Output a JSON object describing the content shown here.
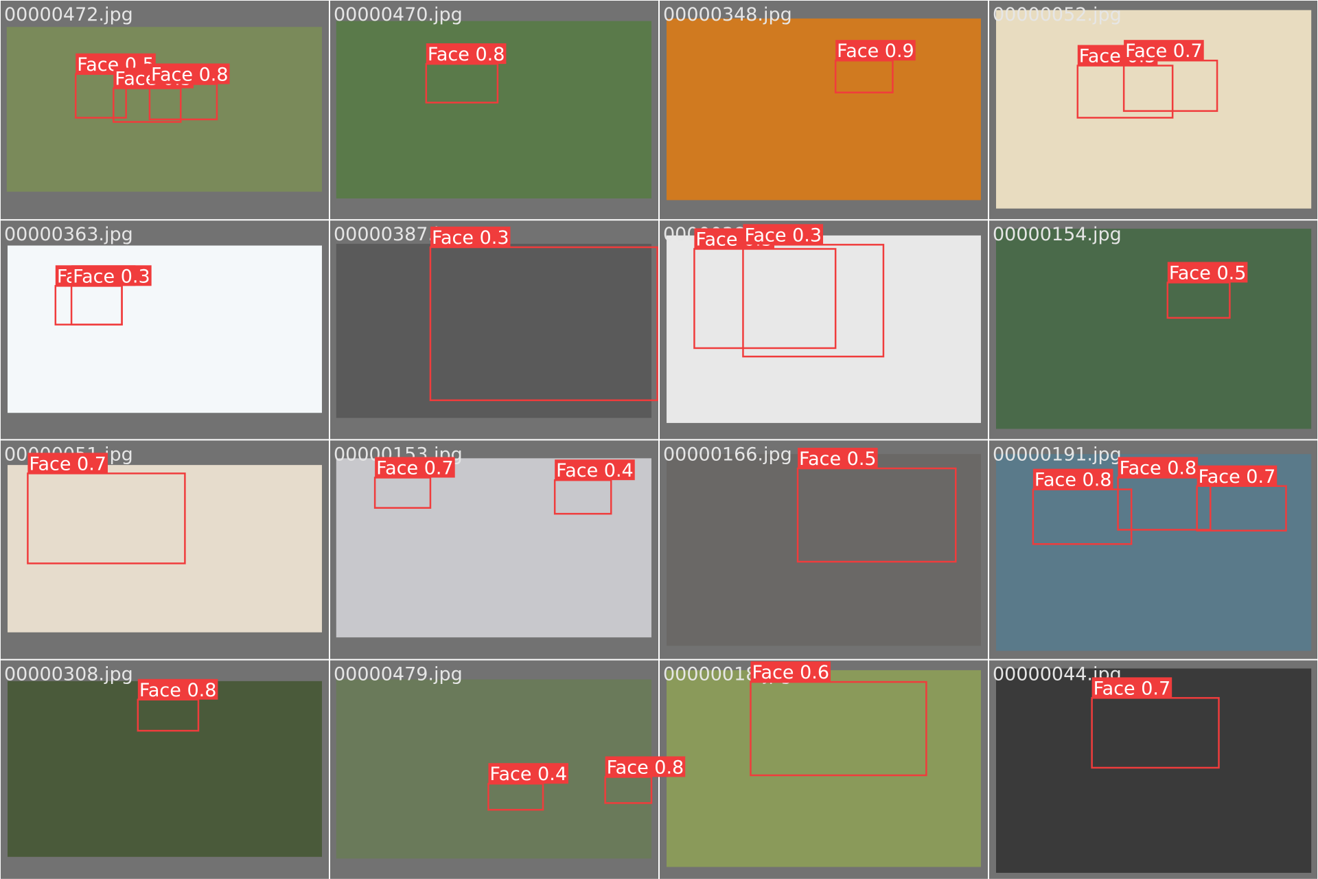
{
  "tiles": [
    {
      "filename": "00000472.jpg",
      "detections": [
        {
          "label": "Face 0.5"
        },
        {
          "label": "Face 0.5"
        },
        {
          "label": "Face 0.8"
        }
      ]
    },
    {
      "filename": "00000470.jpg",
      "detections": [
        {
          "label": "Face 0.8"
        }
      ]
    },
    {
      "filename": "00000348.jpg",
      "detections": [
        {
          "label": "Face 0.9"
        }
      ]
    },
    {
      "filename": "00000052.jpg",
      "detections": [
        {
          "label": "Face 0.5"
        },
        {
          "label": "Face 0.7"
        }
      ]
    },
    {
      "filename": "00000363.jpg",
      "detections": [
        {
          "label": "Face 0.3"
        },
        {
          "label": "Face 0.3"
        }
      ]
    },
    {
      "filename": "00000387.jpg",
      "detections": [
        {
          "label": "Face 0.3"
        }
      ]
    },
    {
      "filename": "00000386.jpg",
      "detections": [
        {
          "label": "Face 0.5"
        },
        {
          "label": "Face 0.3"
        }
      ]
    },
    {
      "filename": "00000154.jpg",
      "detections": [
        {
          "label": "Face 0.5"
        }
      ]
    },
    {
      "filename": "00000051.jpg",
      "detections": [
        {
          "label": "Face 0.7"
        }
      ]
    },
    {
      "filename": "00000153.jpg",
      "detections": [
        {
          "label": "Face 0.7"
        },
        {
          "label": "Face 0.4"
        }
      ]
    },
    {
      "filename": "00000166.jpg",
      "detections": [
        {
          "label": "Face 0.5"
        }
      ]
    },
    {
      "filename": "00000191.jpg",
      "detections": [
        {
          "label": "Face 0.8"
        },
        {
          "label": "Face 0.8"
        },
        {
          "label": "Face 0.7"
        }
      ]
    },
    {
      "filename": "00000308.jpg",
      "detections": [
        {
          "label": "Face 0.8"
        }
      ]
    },
    {
      "filename": "00000479.jpg",
      "detections": [
        {
          "label": "Face 0.4"
        },
        {
          "label": "Face 0.8"
        }
      ]
    },
    {
      "filename": "00000018.jpg",
      "detections": [
        {
          "label": "Face 0.6"
        }
      ]
    },
    {
      "filename": "00000044.jpg",
      "detections": [
        {
          "label": "Face 0.7"
        }
      ]
    }
  ]
}
